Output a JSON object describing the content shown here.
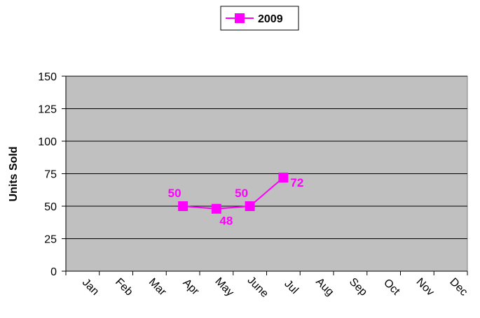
{
  "chart_data": {
    "type": "line",
    "categories": [
      "Jan",
      "Feb",
      "Mar",
      "Apr",
      "May",
      "June",
      "Jul",
      "Aug",
      "Sep",
      "Oct",
      "Nov",
      "Dec"
    ],
    "series": [
      {
        "name": "2009",
        "values": [
          null,
          null,
          null,
          50,
          48,
          50,
          72,
          null,
          null,
          null,
          null,
          null
        ]
      }
    ],
    "xlabel": "",
    "ylabel": "Units Sold",
    "ylim": [
      0,
      150
    ],
    "yticks": [
      0,
      25,
      50,
      75,
      100,
      125,
      150
    ],
    "grid": true,
    "legend": "top-center",
    "colors": {
      "series": "#FF00FF",
      "plot_background": "#C0C0C0",
      "gridline": "#000000"
    },
    "marker": "square",
    "x_tick_labels_rotated": true
  }
}
